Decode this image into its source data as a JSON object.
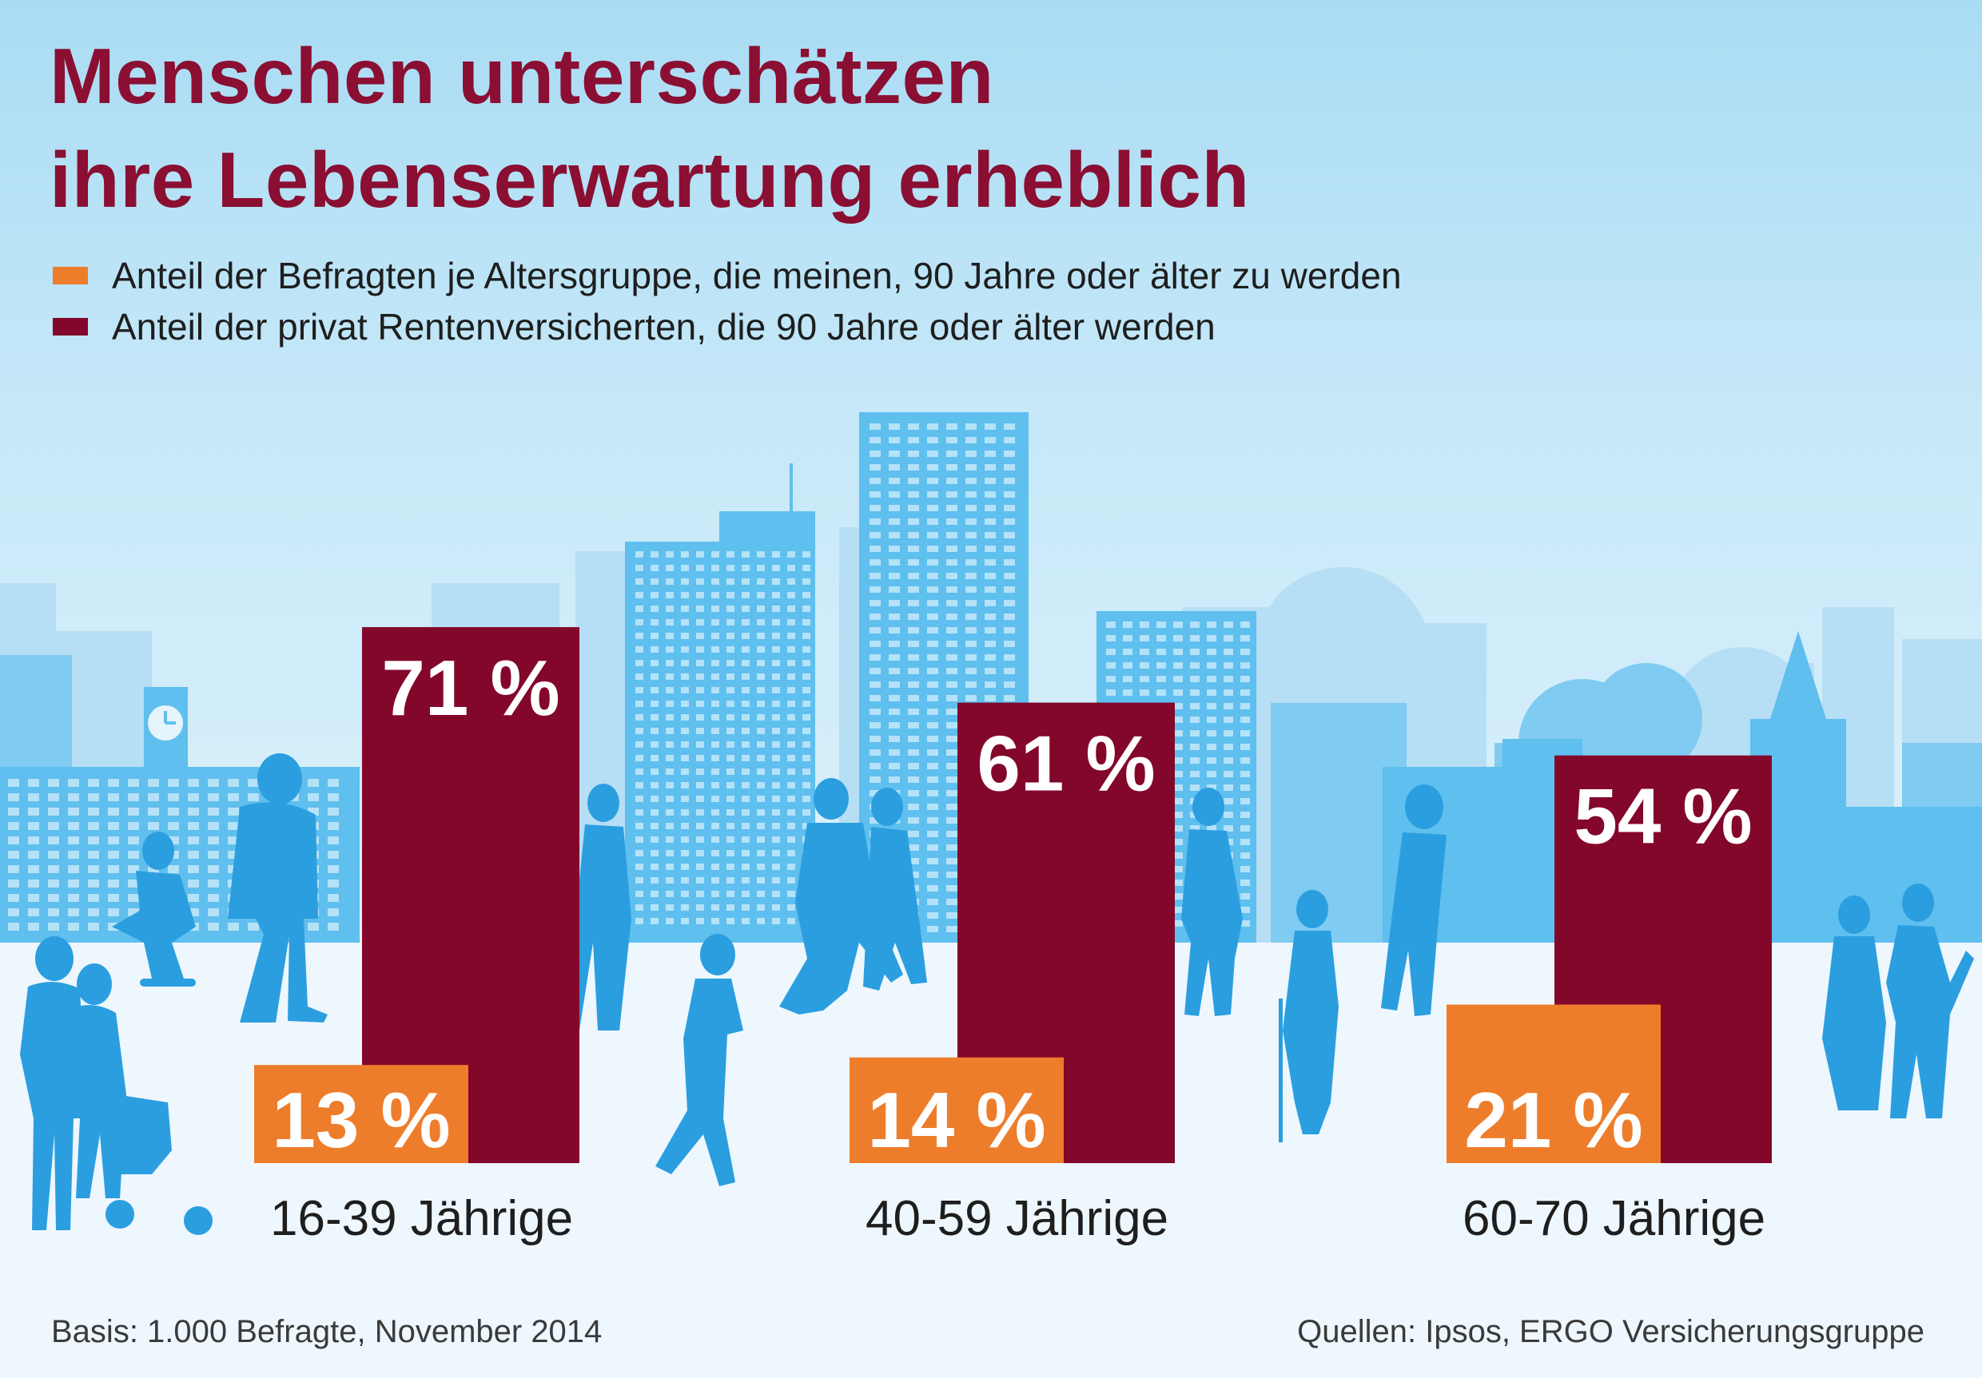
{
  "title_lines": [
    "Menschen unterschätzen",
    "ihre Lebenserwartung erheblich"
  ],
  "colors": {
    "orange": "#ee7d2b",
    "maroon": "#83072b",
    "title": "#8a0f32",
    "silhouette": "#2b9ee0",
    "building": "#5fbfee"
  },
  "legend": [
    {
      "label": "Anteil der Befragten je Altersgruppe, die meinen, 90 Jahre oder älter zu werden",
      "color": "#ee7d2b"
    },
    {
      "label": "Anteil der privat Rentenversicherten, die 90 Jahre oder älter werden",
      "color": "#83072b"
    }
  ],
  "chart_data": {
    "type": "bar",
    "categories": [
      "16-39 Jährige",
      "40-59 Jährige",
      "60-70 Jährige"
    ],
    "series": [
      {
        "name": "Anteil der Befragten je Altersgruppe, die meinen, 90 Jahre oder älter zu werden",
        "values": [
          13,
          14,
          21
        ],
        "labels": [
          "13 %",
          "14 %",
          "21 %"
        ],
        "color": "#ee7d2b"
      },
      {
        "name": "Anteil der privat Rentenversicherten, die 90 Jahre oder älter werden",
        "values": [
          71,
          61,
          54
        ],
        "labels": [
          "71 %",
          "61 %",
          "54 %"
        ],
        "color": "#83072b"
      }
    ],
    "unit": "%",
    "ylim": [
      0,
      100
    ],
    "grid": false,
    "legend_position": "top-left"
  },
  "footer": {
    "basis": "Basis: 1.000 Befragte, November 2014",
    "sources": "Quellen: Ipsos, ERGO Versicherungsgruppe"
  }
}
